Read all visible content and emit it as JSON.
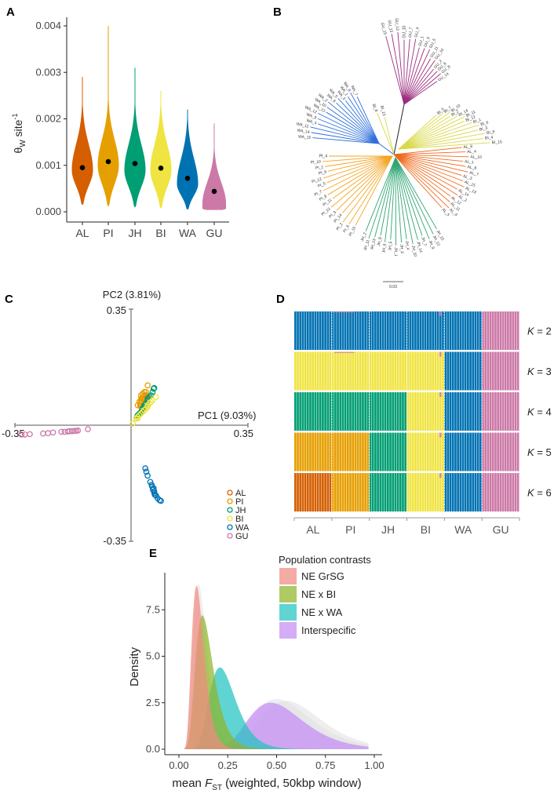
{
  "colors": {
    "AL": "#D55E00",
    "PI": "#E69F00",
    "JH": "#009E73",
    "BI": "#F0E442",
    "WA": "#0072B2",
    "GU": "#CC79A7",
    "tree_GU": "#9B2A7E",
    "tree_WA": "#2F6FDC",
    "tree_BI": "#D9D846",
    "tree_AL": "#F06A1E",
    "tree_PI": "#F2A623",
    "tree_JH": "#2FA575"
  },
  "chart_data": [
    {
      "panel": "A",
      "type": "violin",
      "ylabel": "θW site-1",
      "ylabel_main": "θ",
      "ylabel_sub": "W",
      "ylabel_rest": " site",
      "ylabel_sup": "-1",
      "ylim": [
        0,
        0.004
      ],
      "yticks": [
        "0.000",
        "0.001",
        "0.002",
        "0.003",
        "0.004"
      ],
      "ytick_values": [
        0,
        0.001,
        0.002,
        0.003,
        0.004
      ],
      "categories": [
        "AL",
        "PI",
        "JH",
        "BI",
        "WA",
        "GU"
      ],
      "medians": [
        0.00095,
        0.00108,
        0.00104,
        0.00094,
        0.00072,
        0.00044
      ],
      "mins": [
        0.00015,
        0.00012,
        0.0001,
        8e-05,
        5e-05,
        4e-05
      ],
      "maxs": [
        0.0029,
        0.004,
        0.0031,
        0.0026,
        0.0022,
        0.0019
      ],
      "modes": [
        0.0009,
        0.001,
        0.0009,
        0.0009,
        0.0006,
        0.00018
      ]
    },
    {
      "panel": "B",
      "type": "tree",
      "scale_label": "0.03",
      "clades": [
        {
          "pop": "GU",
          "tips": [
            "GU_15",
            "GU_13",
            "GU_12",
            "GU_10",
            "GU_7",
            "GU_4",
            "GU_1",
            "GU_3",
            "GU_5",
            "GU_11",
            "GU_10",
            "GU_2",
            "GU_6",
            "GU_8",
            "GU_14"
          ]
        },
        {
          "pop": "BI_outliers",
          "tips": [
            "BI_8",
            "BI_13"
          ]
        },
        {
          "pop": "BI",
          "tips": [
            "BI_5",
            "BI_7",
            "BI_10",
            "BI_2",
            "BI_14",
            "BI_11",
            "BI_12",
            "BI_1",
            "BI_6",
            "BI_3",
            "BI_9",
            "BI_4",
            "BI_15"
          ]
        },
        {
          "pop": "AL",
          "tips": [
            "AL_6",
            "AL_4",
            "AL_10",
            "AL_1",
            "AL_8",
            "AL_7",
            "AL_3",
            "AL_15",
            "AL_13",
            "AL_14",
            "AL_2",
            "AL_12",
            "AL_11",
            "AL_9",
            "AL_5"
          ]
        },
        {
          "pop": "JH",
          "tips": [
            "JH_15",
            "JH_12",
            "JH_9",
            "JH_7",
            "JH_14",
            "JH_10",
            "JH_4",
            "JH_3",
            "JH_1",
            "JH_5",
            "JH_6",
            "JH_8",
            "JH_13",
            "JH_11",
            "JH_2"
          ]
        },
        {
          "pop": "PI",
          "tips": [
            "PI_15",
            "PI_6",
            "PI_2",
            "PI_14",
            "PI_3",
            "PI_13",
            "PI_11",
            "PI_8",
            "PI_7",
            "PI_5",
            "PI_12",
            "PI_9",
            "PI_1",
            "PI_10",
            "PI_4"
          ]
        },
        {
          "pop": "WA",
          "tips": [
            "WA_15",
            "WA_14",
            "WA_11",
            "WA_4",
            "WA_9",
            "WA_12",
            "WA_13",
            "WA_10",
            "WA_2",
            "WA_6",
            "WA_5",
            "WA_3",
            "WA_1",
            "WA_8",
            "WA_7"
          ]
        }
      ]
    },
    {
      "panel": "C",
      "type": "scatter",
      "xlabel": "PC1 (9.03%)",
      "ylabel": "PC2 (3.81%)",
      "xlim": [
        -0.35,
        0.35
      ],
      "ylim": [
        -0.35,
        0.35
      ],
      "tick_labels": {
        "xmin": "-0.35",
        "xmax": "0.35",
        "ymin": "-0.35",
        "ymax": "0.35"
      },
      "legend": [
        "AL",
        "PI",
        "JH",
        "BI",
        "WA",
        "GU"
      ],
      "series": [
        {
          "name": "AL",
          "points": [
            [
              0.03,
              0.07
            ],
            [
              0.035,
              0.08
            ],
            [
              0.04,
              0.075
            ],
            [
              0.028,
              0.06
            ],
            [
              0.045,
              0.09
            ],
            [
              0.05,
              0.085
            ],
            [
              0.033,
              0.05
            ],
            [
              0.04,
              0.065
            ]
          ]
        },
        {
          "name": "PI",
          "points": [
            [
              0.05,
              0.12
            ],
            [
              0.035,
              0.085
            ],
            [
              0.04,
              0.09
            ],
            [
              0.03,
              0.08
            ],
            [
              0.025,
              0.07
            ],
            [
              0.03,
              0.075
            ],
            [
              0.045,
              0.1
            ],
            [
              0.035,
              0.095
            ],
            [
              0.028,
              0.065
            ],
            [
              0.04,
              0.1
            ],
            [
              0.02,
              0.06
            ],
            [
              0.03,
              0.09
            ]
          ]
        },
        {
          "name": "JH",
          "points": [
            [
              0.068,
              0.11
            ],
            [
              0.07,
              0.112
            ],
            [
              0.065,
              0.1
            ],
            [
              0.055,
              0.085
            ],
            [
              0.05,
              0.075
            ],
            [
              0.045,
              0.065
            ],
            [
              0.04,
              0.06
            ],
            [
              0.035,
              0.05
            ],
            [
              0.03,
              0.04
            ],
            [
              0.025,
              0.035
            ],
            [
              0.02,
              0.03
            ],
            [
              0.018,
              0.025
            ],
            [
              0.06,
              0.09
            ],
            [
              0.05,
              0.08
            ],
            [
              0.04,
              0.055
            ]
          ]
        },
        {
          "name": "BI",
          "points": [
            [
              0.075,
              0.085
            ],
            [
              0.06,
              0.07
            ],
            [
              0.055,
              0.065
            ],
            [
              0.05,
              0.055
            ],
            [
              0.045,
              0.05
            ],
            [
              0.04,
              0.045
            ],
            [
              0.035,
              0.04
            ],
            [
              0.03,
              0.035
            ],
            [
              0.025,
              0.03
            ],
            [
              0.02,
              0.025
            ],
            [
              0.02,
              0.02
            ],
            [
              0.015,
              0.02
            ],
            [
              0.005,
              0.005
            ],
            [
              0.065,
              0.075
            ],
            [
              0.05,
              0.06
            ]
          ]
        },
        {
          "name": "WA",
          "points": [
            [
              0.043,
              -0.13
            ],
            [
              0.046,
              -0.14
            ],
            [
              0.05,
              -0.152
            ],
            [
              0.058,
              -0.171
            ],
            [
              0.062,
              -0.18
            ],
            [
              0.064,
              -0.186
            ],
            [
              0.068,
              -0.19
            ],
            [
              0.07,
              -0.2
            ],
            [
              0.07,
              -0.205
            ],
            [
              0.072,
              -0.21
            ],
            [
              0.075,
              -0.212
            ],
            [
              0.08,
              -0.22
            ],
            [
              0.086,
              -0.226
            ],
            [
              0.09,
              -0.228
            ],
            [
              0.066,
              -0.195
            ]
          ]
        },
        {
          "name": "GU",
          "points": [
            [
              -0.33,
              -0.028
            ],
            [
              -0.32,
              -0.028
            ],
            [
              -0.305,
              -0.027
            ],
            [
              -0.265,
              -0.025
            ],
            [
              -0.25,
              -0.024
            ],
            [
              -0.235,
              -0.022
            ],
            [
              -0.21,
              -0.02
            ],
            [
              -0.2,
              -0.02
            ],
            [
              -0.19,
              -0.019
            ],
            [
              -0.185,
              -0.018
            ],
            [
              -0.178,
              -0.018
            ],
            [
              -0.17,
              -0.017
            ],
            [
              -0.165,
              -0.017
            ],
            [
              -0.16,
              -0.016
            ],
            [
              -0.13,
              -0.012
            ]
          ]
        }
      ]
    },
    {
      "panel": "D",
      "type": "admixture",
      "populations": [
        "AL",
        "PI",
        "JH",
        "BI",
        "WA",
        "GU"
      ],
      "individuals_per_population": 15,
      "rows": [
        {
          "label_k": "K",
          "label_rest": " = 2",
          "assign": [
            "WA",
            "WA",
            "WA",
            "WA",
            "WA",
            "GU"
          ]
        },
        {
          "label_k": "K",
          "label_rest": " = 3",
          "assign": [
            "BI",
            "BI",
            "BI",
            "BI",
            "WA",
            "GU"
          ]
        },
        {
          "label_k": "K",
          "label_rest": " = 4",
          "assign": [
            "JH",
            "JH",
            "JH",
            "BI",
            "WA",
            "GU"
          ]
        },
        {
          "label_k": "K",
          "label_rest": " = 5",
          "assign": [
            "PI",
            "PI",
            "JH",
            "BI",
            "WA",
            "GU"
          ]
        },
        {
          "label_k": "K",
          "label_rest": " = 6",
          "assign": [
            "AL",
            "PI",
            "JH",
            "BI",
            "WA",
            "GU"
          ]
        }
      ]
    },
    {
      "panel": "E",
      "type": "area",
      "xlabel_pre": "mean ",
      "xlabel_F": "F",
      "xlabel_sub": "ST",
      "xlabel_post": " (weighted, 50kbp window)",
      "ylabel": "Density",
      "xlim": [
        0,
        1
      ],
      "ylim": [
        0,
        9
      ],
      "xticks": [
        "0.00",
        "0.25",
        "0.50",
        "0.75",
        "1.00"
      ],
      "xtick_values": [
        0,
        0.25,
        0.5,
        0.75,
        1
      ],
      "yticks": [
        "0.0",
        "2.5",
        "5.0",
        "7.5"
      ],
      "ytick_values": [
        0,
        2.5,
        5,
        7.5
      ],
      "legend_title": "Population contrasts",
      "series": [
        {
          "name": "NE GrSG",
          "color": "#F08A80",
          "peak_x": 0.09,
          "peak_y": 8.8,
          "spread": 0.35
        },
        {
          "name": "NE x BI",
          "color": "#8DB62A",
          "peak_x": 0.12,
          "peak_y": 7.2,
          "spread": 0.38
        },
        {
          "name": "NE x WA",
          "color": "#22C3C0",
          "peak_x": 0.21,
          "peak_y": 4.4,
          "spread": 0.32
        },
        {
          "name": "Interspecific",
          "color": "#C38CF5",
          "peak_x": 0.47,
          "peak_y": 2.5,
          "spread": 0.3
        }
      ]
    }
  ],
  "panel_labels": [
    "A",
    "B",
    "C",
    "D",
    "E"
  ]
}
